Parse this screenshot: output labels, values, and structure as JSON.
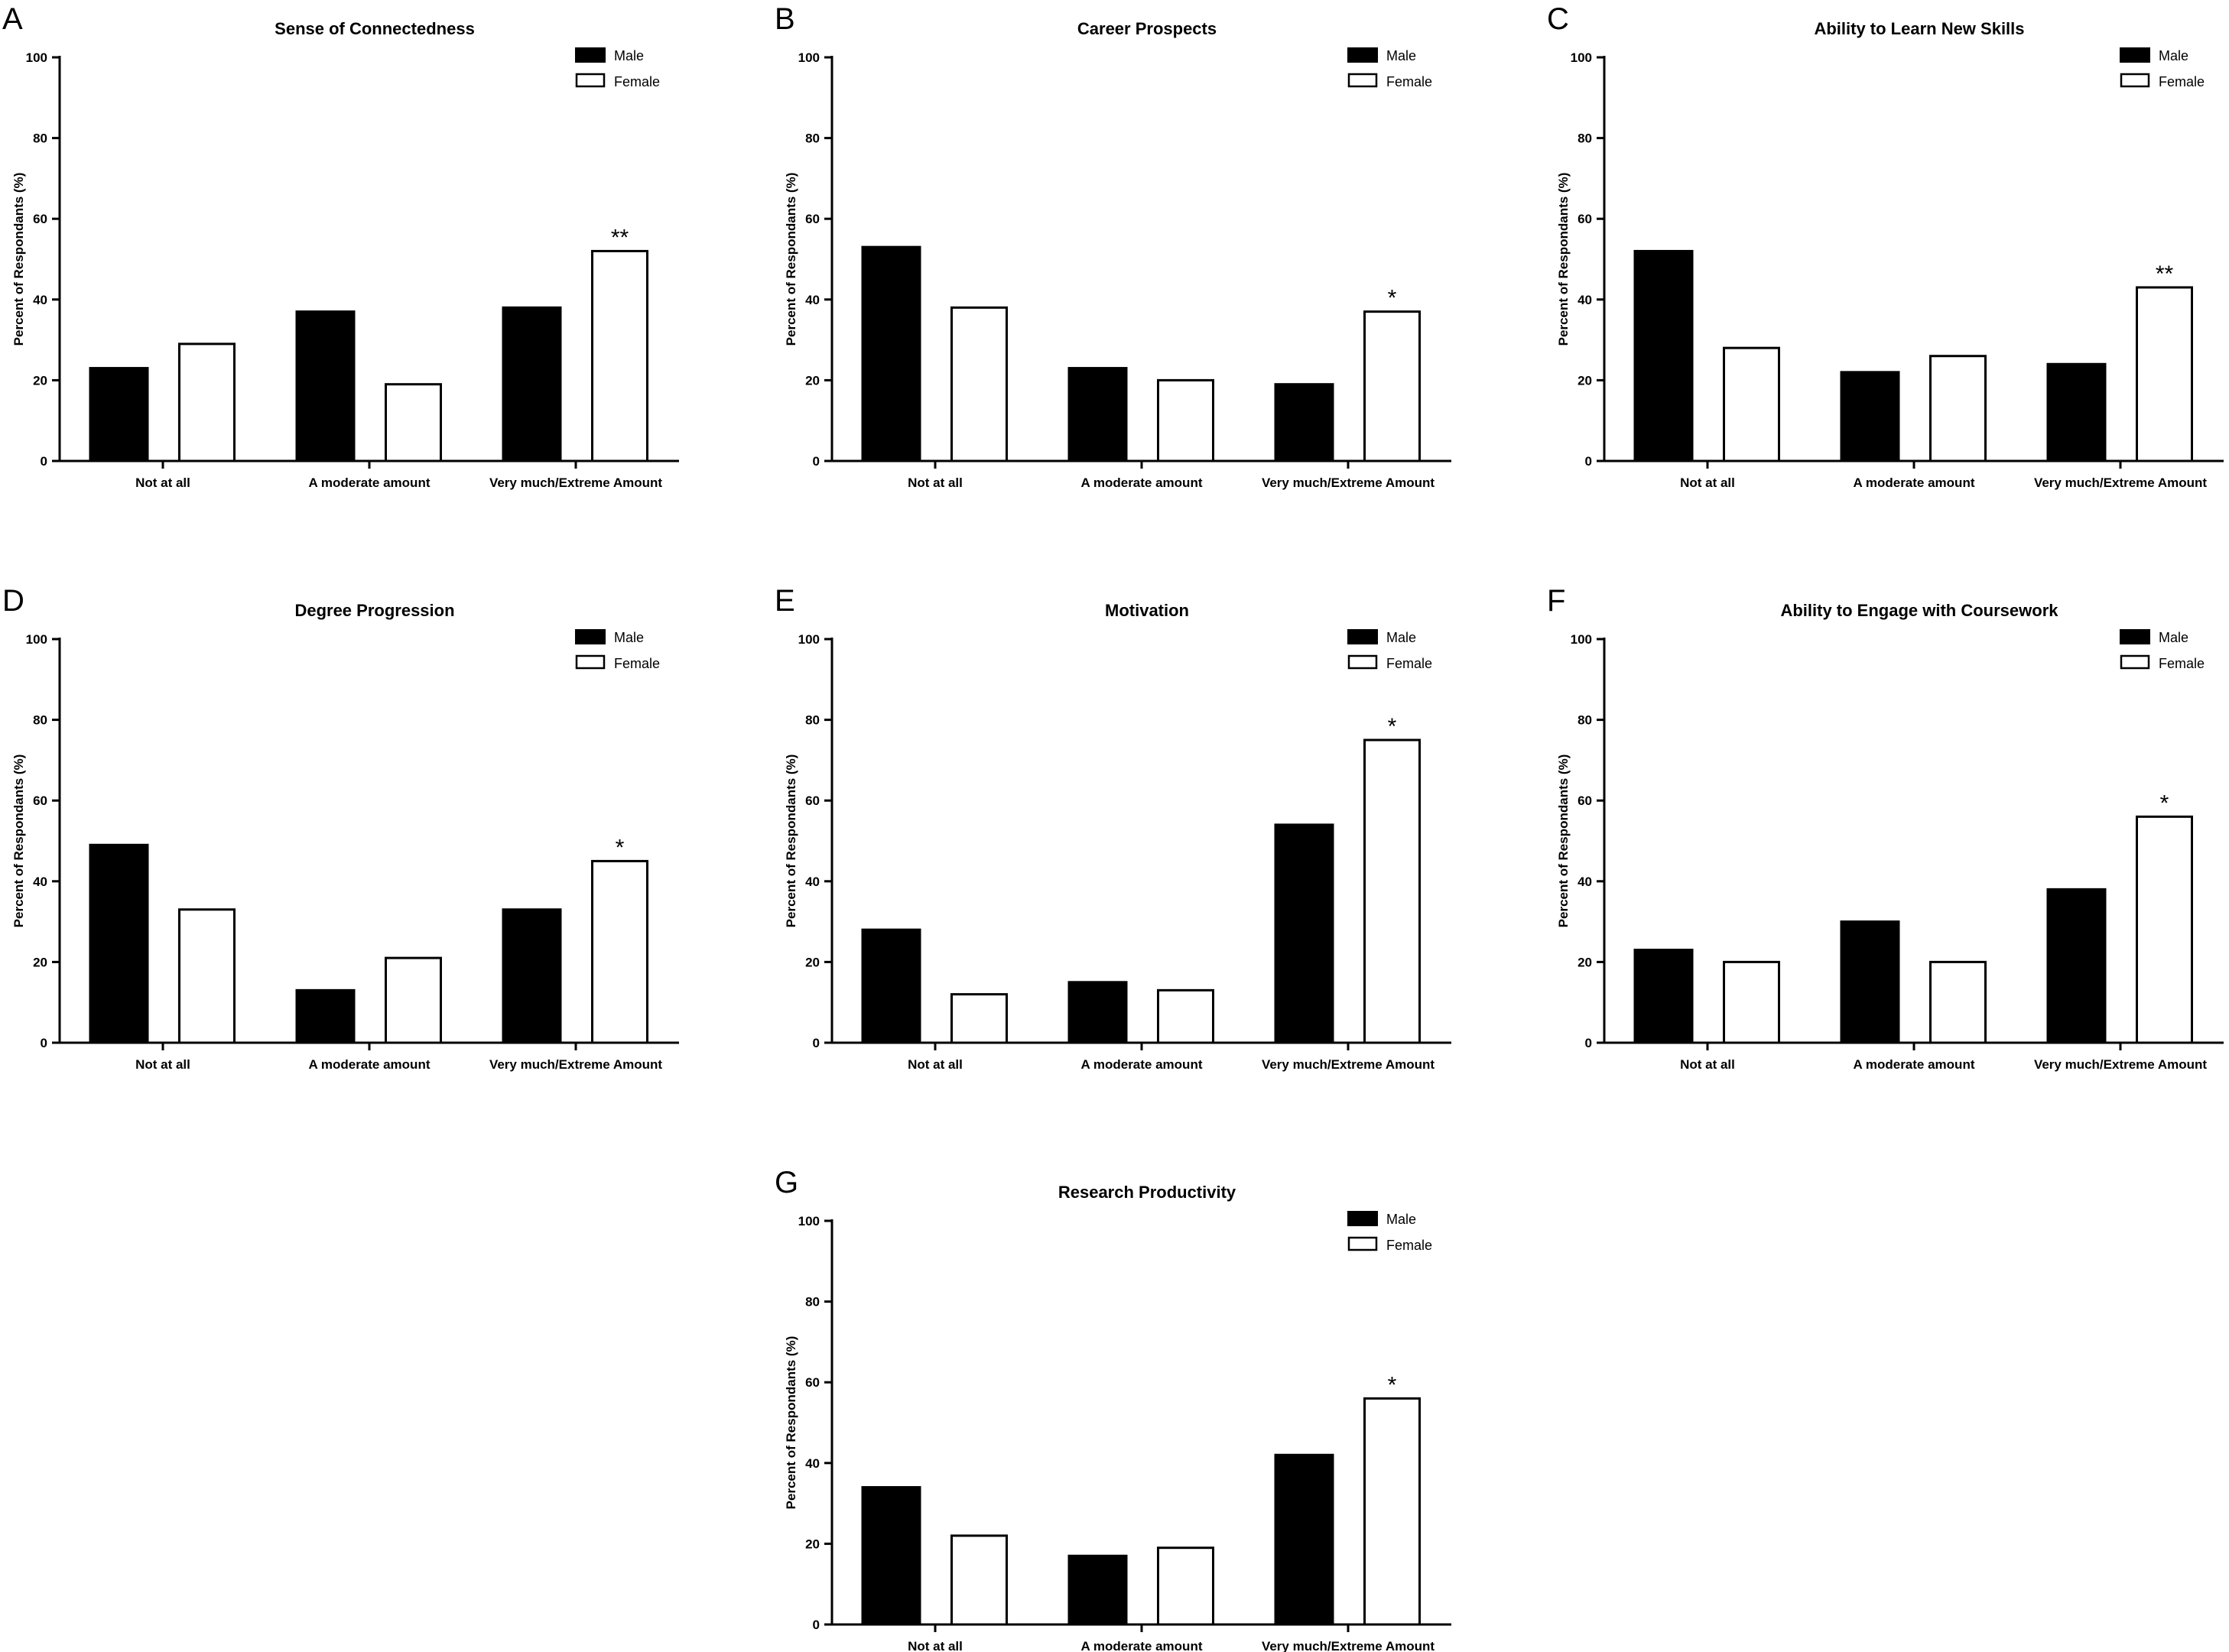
{
  "colors": {
    "male": "#000000",
    "female": "#ffffff",
    "stroke": "#000000"
  },
  "chart_data": [
    {
      "panel": "A",
      "type": "bar",
      "title": "Sense of Connectedness",
      "ylabel": "Percent of Respondants (%)",
      "xlabel": "",
      "ylim": [
        0,
        100
      ],
      "yticks": [
        0,
        20,
        40,
        60,
        80,
        100
      ],
      "categories": [
        "Not at all",
        "A moderate amount",
        "Very much/Extreme Amount"
      ],
      "series": [
        {
          "name": "Male",
          "values": [
            23,
            37,
            38
          ]
        },
        {
          "name": "Female",
          "values": [
            29,
            19,
            52
          ]
        }
      ],
      "annotations": [
        "",
        "",
        "**"
      ],
      "legend": "top-right",
      "grid": false
    },
    {
      "panel": "B",
      "type": "bar",
      "title": "Career Prospects",
      "ylabel": "Percent of Respondants (%)",
      "xlabel": "",
      "ylim": [
        0,
        100
      ],
      "yticks": [
        0,
        20,
        40,
        60,
        80,
        100
      ],
      "categories": [
        "Not at all",
        "A moderate amount",
        "Very much/Extreme Amount"
      ],
      "series": [
        {
          "name": "Male",
          "values": [
            53,
            23,
            19
          ]
        },
        {
          "name": "Female",
          "values": [
            38,
            20,
            37
          ]
        }
      ],
      "annotations": [
        "",
        "",
        "*"
      ],
      "legend": "top-right",
      "grid": false
    },
    {
      "panel": "C",
      "type": "bar",
      "title": "Ability to Learn New Skills",
      "ylabel": "Percent of Respondants (%)",
      "xlabel": "",
      "ylim": [
        0,
        100
      ],
      "yticks": [
        0,
        20,
        40,
        60,
        80,
        100
      ],
      "categories": [
        "Not at all",
        "A moderate amount",
        "Very much/Extreme Amount"
      ],
      "series": [
        {
          "name": "Male",
          "values": [
            52,
            22,
            24
          ]
        },
        {
          "name": "Female",
          "values": [
            28,
            26,
            43
          ]
        }
      ],
      "annotations": [
        "",
        "",
        "**"
      ],
      "legend": "top-right",
      "grid": false
    },
    {
      "panel": "D",
      "type": "bar",
      "title": "Degree Progression",
      "ylabel": "Percent of Respondants (%)",
      "xlabel": "",
      "ylim": [
        0,
        100
      ],
      "yticks": [
        0,
        20,
        40,
        60,
        80,
        100
      ],
      "categories": [
        "Not at all",
        "A moderate amount",
        "Very much/Extreme Amount"
      ],
      "series": [
        {
          "name": "Male",
          "values": [
            49,
            13,
            33
          ]
        },
        {
          "name": "Female",
          "values": [
            33,
            21,
            45
          ]
        }
      ],
      "annotations": [
        "",
        "",
        "*"
      ],
      "legend": "top-right",
      "grid": false
    },
    {
      "panel": "E",
      "type": "bar",
      "title": "Motivation",
      "ylabel": "Percent of Respondants (%)",
      "xlabel": "",
      "ylim": [
        0,
        100
      ],
      "yticks": [
        0,
        20,
        40,
        60,
        80,
        100
      ],
      "categories": [
        "Not at all",
        "A moderate amount",
        "Very much/Extreme Amount"
      ],
      "series": [
        {
          "name": "Male",
          "values": [
            28,
            15,
            54
          ]
        },
        {
          "name": "Female",
          "values": [
            12,
            13,
            75
          ]
        }
      ],
      "annotations": [
        "",
        "",
        "*"
      ],
      "legend": "top-right",
      "grid": false
    },
    {
      "panel": "F",
      "type": "bar",
      "title": "Ability to Engage with Coursework",
      "ylabel": "Percent of Respondants (%)",
      "xlabel": "",
      "ylim": [
        0,
        100
      ],
      "yticks": [
        0,
        20,
        40,
        60,
        80,
        100
      ],
      "categories": [
        "Not at all",
        "A moderate amount",
        "Very much/Extreme Amount"
      ],
      "series": [
        {
          "name": "Male",
          "values": [
            23,
            30,
            38
          ]
        },
        {
          "name": "Female",
          "values": [
            20,
            20,
            56
          ]
        }
      ],
      "annotations": [
        "",
        "",
        "*"
      ],
      "legend": "top-right",
      "grid": false
    },
    {
      "panel": "G",
      "type": "bar",
      "title": "Research Productivity",
      "ylabel": "Percent of Respondants (%)",
      "xlabel": "",
      "ylim": [
        0,
        100
      ],
      "yticks": [
        0,
        20,
        40,
        60,
        80,
        100
      ],
      "categories": [
        "Not at all",
        "A moderate amount",
        "Very much/Extreme Amount"
      ],
      "series": [
        {
          "name": "Male",
          "values": [
            34,
            17,
            42
          ]
        },
        {
          "name": "Female",
          "values": [
            22,
            19,
            56
          ]
        }
      ],
      "annotations": [
        "",
        "",
        "*"
      ],
      "legend": "top-right",
      "grid": false
    }
  ]
}
